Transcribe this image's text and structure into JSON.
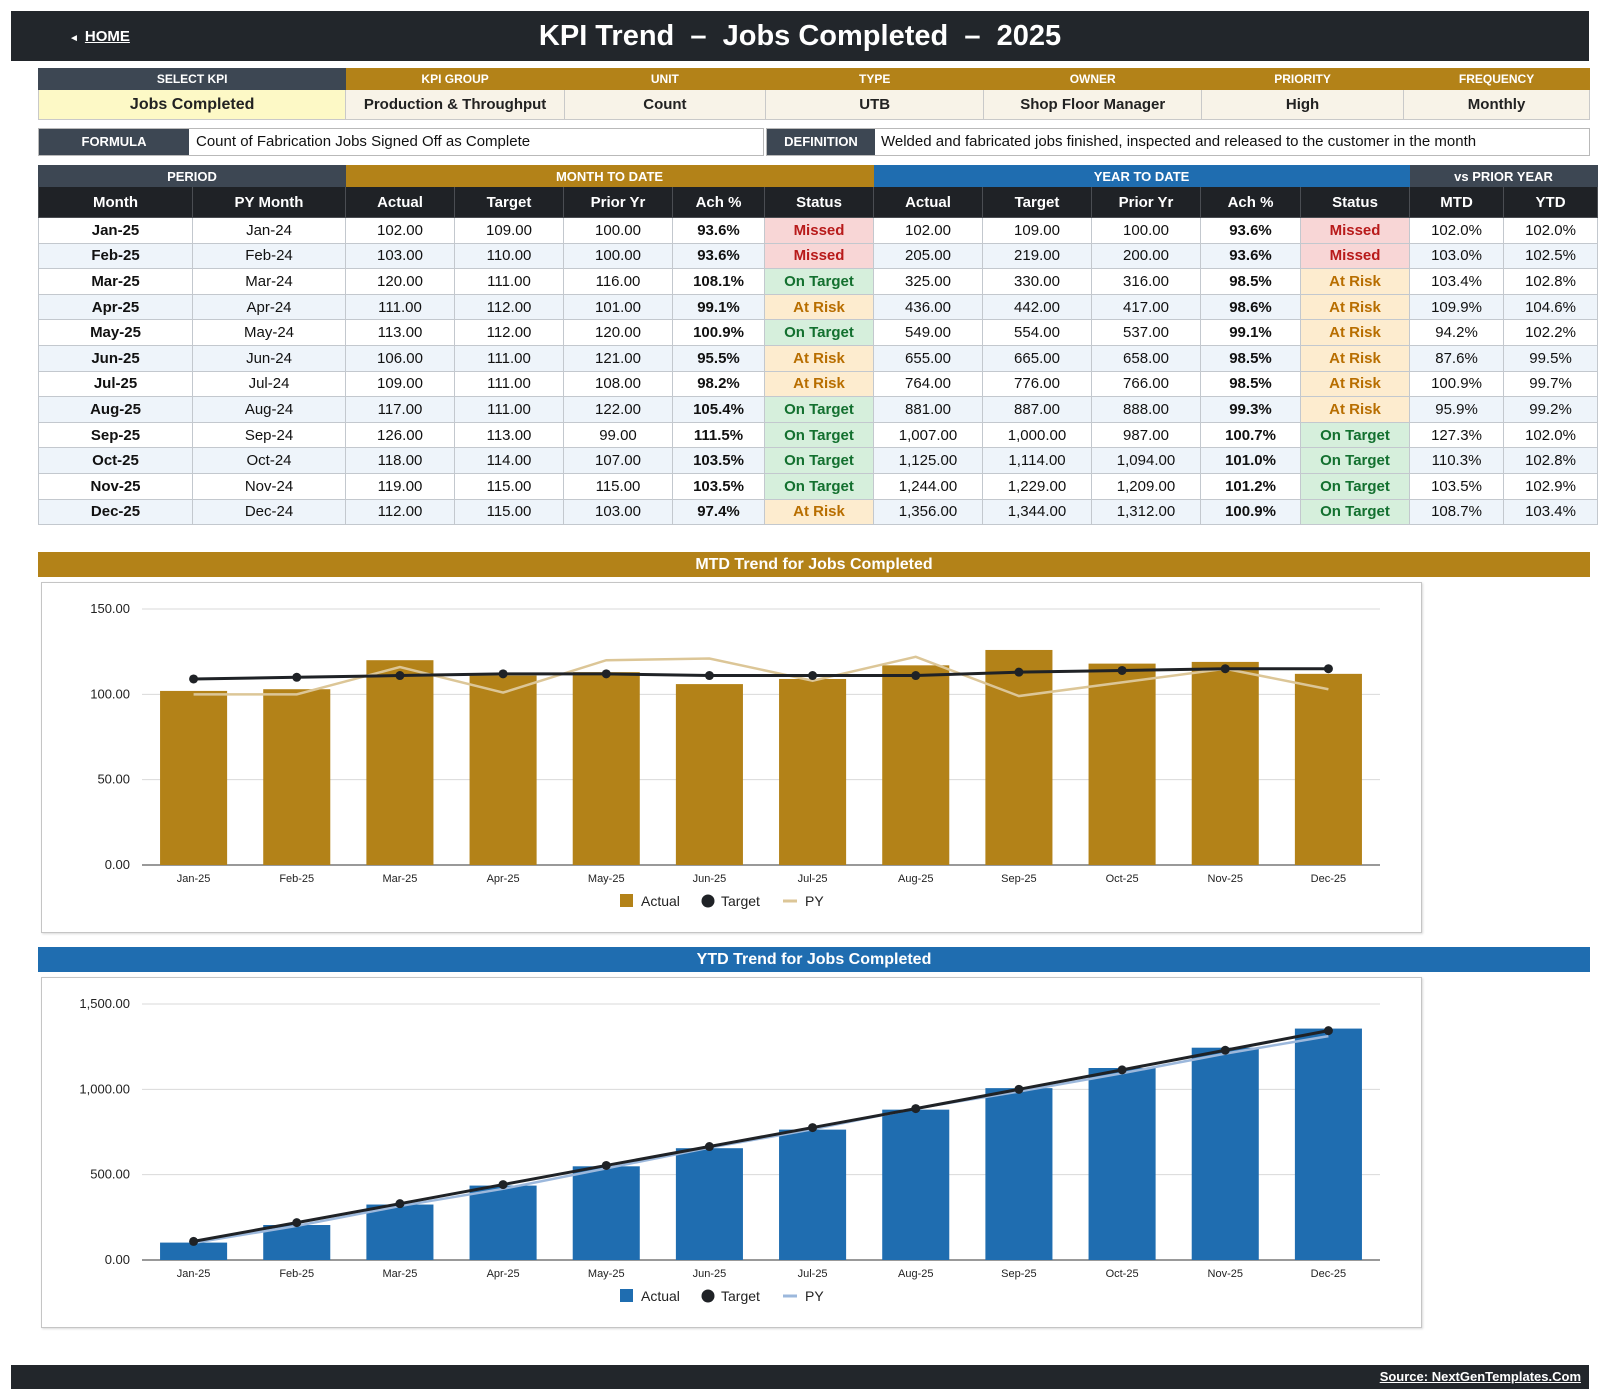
{
  "header": {
    "home_label": "HOME",
    "title": "KPI Trend  –  Jobs Completed  –  2025"
  },
  "kpi_info": {
    "headers": [
      "SELECT KPI",
      "KPI GROUP",
      "UNIT",
      "TYPE",
      "OWNER",
      "PRIORITY",
      "FREQUENCY"
    ],
    "values": [
      "Jobs Completed",
      "Production & Throughput",
      "Count",
      "UTB",
      "Shop Floor Manager",
      "High",
      "Monthly"
    ]
  },
  "formula": {
    "label": "FORMULA",
    "text": "Count of Fabrication Jobs Signed Off as Complete"
  },
  "definition": {
    "label": "DEFINITION",
    "text": "Welded and fabricated jobs finished, inspected and released to the customer in the month"
  },
  "table": {
    "groups": {
      "period": "PERIOD",
      "mtd": "MONTH TO DATE",
      "ytd": "YEAR TO DATE",
      "vspy": "vs PRIOR YEAR"
    },
    "columns": [
      "Month",
      "PY Month",
      "Actual",
      "Target",
      "Prior Yr",
      "Ach %",
      "Status",
      "Actual",
      "Target",
      "Prior Yr",
      "Ach %",
      "Status",
      "MTD",
      "YTD"
    ],
    "rows": [
      [
        "Jan-25",
        "Jan-24",
        "102.00",
        "109.00",
        "100.00",
        "93.6%",
        "Missed",
        "102.00",
        "109.00",
        "100.00",
        "93.6%",
        "Missed",
        "102.0%",
        "102.0%"
      ],
      [
        "Feb-25",
        "Feb-24",
        "103.00",
        "110.00",
        "100.00",
        "93.6%",
        "Missed",
        "205.00",
        "219.00",
        "200.00",
        "93.6%",
        "Missed",
        "103.0%",
        "102.5%"
      ],
      [
        "Mar-25",
        "Mar-24",
        "120.00",
        "111.00",
        "116.00",
        "108.1%",
        "On Target",
        "325.00",
        "330.00",
        "316.00",
        "98.5%",
        "At Risk",
        "103.4%",
        "102.8%"
      ],
      [
        "Apr-25",
        "Apr-24",
        "111.00",
        "112.00",
        "101.00",
        "99.1%",
        "At Risk",
        "436.00",
        "442.00",
        "417.00",
        "98.6%",
        "At Risk",
        "109.9%",
        "104.6%"
      ],
      [
        "May-25",
        "May-24",
        "113.00",
        "112.00",
        "120.00",
        "100.9%",
        "On Target",
        "549.00",
        "554.00",
        "537.00",
        "99.1%",
        "At Risk",
        "94.2%",
        "102.2%"
      ],
      [
        "Jun-25",
        "Jun-24",
        "106.00",
        "111.00",
        "121.00",
        "95.5%",
        "At Risk",
        "655.00",
        "665.00",
        "658.00",
        "98.5%",
        "At Risk",
        "87.6%",
        "99.5%"
      ],
      [
        "Jul-25",
        "Jul-24",
        "109.00",
        "111.00",
        "108.00",
        "98.2%",
        "At Risk",
        "764.00",
        "776.00",
        "766.00",
        "98.5%",
        "At Risk",
        "100.9%",
        "99.7%"
      ],
      [
        "Aug-25",
        "Aug-24",
        "117.00",
        "111.00",
        "122.00",
        "105.4%",
        "On Target",
        "881.00",
        "887.00",
        "888.00",
        "99.3%",
        "At Risk",
        "95.9%",
        "99.2%"
      ],
      [
        "Sep-25",
        "Sep-24",
        "126.00",
        "113.00",
        "99.00",
        "111.5%",
        "On Target",
        "1,007.00",
        "1,000.00",
        "987.00",
        "100.7%",
        "On Target",
        "127.3%",
        "102.0%"
      ],
      [
        "Oct-25",
        "Oct-24",
        "118.00",
        "114.00",
        "107.00",
        "103.5%",
        "On Target",
        "1,125.00",
        "1,114.00",
        "1,094.00",
        "101.0%",
        "On Target",
        "110.3%",
        "102.8%"
      ],
      [
        "Nov-25",
        "Nov-24",
        "119.00",
        "115.00",
        "115.00",
        "103.5%",
        "On Target",
        "1,244.00",
        "1,229.00",
        "1,209.00",
        "101.2%",
        "On Target",
        "103.5%",
        "102.9%"
      ],
      [
        "Dec-25",
        "Dec-24",
        "112.00",
        "115.00",
        "103.00",
        "97.4%",
        "At Risk",
        "1,356.00",
        "1,344.00",
        "1,312.00",
        "100.9%",
        "On Target",
        "108.7%",
        "103.4%"
      ]
    ]
  },
  "colors": {
    "header_dark": "#22262b",
    "gold": "#b38218",
    "blue": "#1f6db0",
    "slate": "#3d4753",
    "mtd_py_line": "#dcc697",
    "ytd_py_line": "#9cb8dc",
    "target_line": "#1f2226",
    "missed": "#b81a1a",
    "at_risk": "#b86e00",
    "on_target": "#13702f"
  },
  "mtd_chart": {
    "title": "MTD Trend for Jobs Completed"
  },
  "ytd_chart": {
    "title": "YTD Trend for Jobs Completed"
  },
  "chart_data": [
    {
      "type": "bar",
      "title": "MTD Trend for Jobs Completed",
      "categories": [
        "Jan-25",
        "Feb-25",
        "Mar-25",
        "Apr-25",
        "May-25",
        "Jun-25",
        "Jul-25",
        "Aug-25",
        "Sep-25",
        "Oct-25",
        "Nov-25",
        "Dec-25"
      ],
      "series": [
        {
          "name": "Actual",
          "kind": "bar",
          "values": [
            102,
            103,
            120,
            111,
            113,
            106,
            109,
            117,
            126,
            118,
            119,
            112
          ]
        },
        {
          "name": "Target",
          "kind": "line-markers",
          "values": [
            109,
            110,
            111,
            112,
            112,
            111,
            111,
            111,
            113,
            114,
            115,
            115
          ]
        },
        {
          "name": "PY",
          "kind": "line",
          "values": [
            100,
            100,
            116,
            101,
            120,
            121,
            108,
            122,
            99,
            107,
            115,
            103
          ]
        }
      ],
      "yticks": [
        "0.00",
        "50.00",
        "100.00",
        "150.00"
      ],
      "ylim": [
        0,
        150
      ],
      "grid": true,
      "legend": "bottom-center"
    },
    {
      "type": "bar",
      "title": "YTD Trend for Jobs Completed",
      "categories": [
        "Jan-25",
        "Feb-25",
        "Mar-25",
        "Apr-25",
        "May-25",
        "Jun-25",
        "Jul-25",
        "Aug-25",
        "Sep-25",
        "Oct-25",
        "Nov-25",
        "Dec-25"
      ],
      "series": [
        {
          "name": "Actual",
          "kind": "bar",
          "values": [
            102,
            205,
            325,
            436,
            549,
            655,
            764,
            881,
            1007,
            1125,
            1244,
            1356
          ]
        },
        {
          "name": "Target",
          "kind": "line-markers",
          "values": [
            109,
            219,
            330,
            442,
            554,
            665,
            776,
            887,
            1000,
            1114,
            1229,
            1344
          ]
        },
        {
          "name": "PY",
          "kind": "line",
          "values": [
            100,
            200,
            316,
            417,
            537,
            658,
            766,
            888,
            987,
            1094,
            1209,
            1312
          ]
        }
      ],
      "yticks": [
        "0.00",
        "500.00",
        "1,000.00",
        "1,500.00"
      ],
      "ylim": [
        0,
        1500
      ],
      "grid": true,
      "legend": "bottom-center"
    }
  ],
  "footer": {
    "source": "Source: NextGenTemplates.Com"
  }
}
